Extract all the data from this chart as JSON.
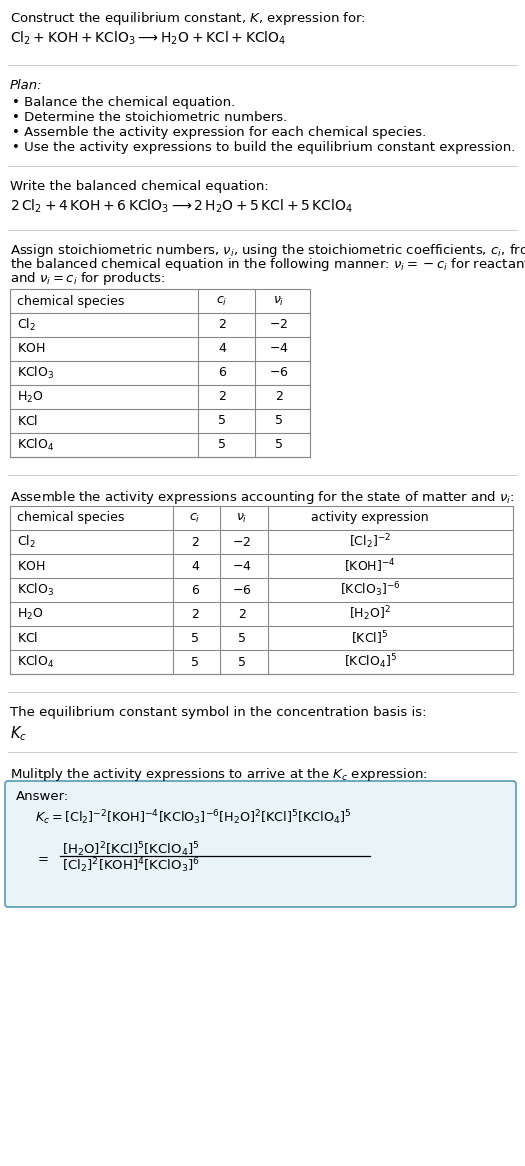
{
  "bg_color": "#ffffff",
  "text_color": "#000000",
  "divider_color": "#cccccc",
  "answer_box_color": "#e8f4f8",
  "answer_box_border": "#5599bb",
  "plan_bullets": [
    "Balance the chemical equation.",
    "Determine the stoichiometric numbers.",
    "Assemble the activity expression for each chemical species.",
    "Use the activity expressions to build the equilibrium constant expression."
  ],
  "table1_rows": [
    [
      "$\\mathrm{Cl_2}$",
      "2",
      "$-2$"
    ],
    [
      "$\\mathrm{KOH}$",
      "4",
      "$-4$"
    ],
    [
      "$\\mathrm{KClO_3}$",
      "6",
      "$-6$"
    ],
    [
      "$\\mathrm{H_2O}$",
      "2",
      "2"
    ],
    [
      "$\\mathrm{KCl}$",
      "5",
      "5"
    ],
    [
      "$\\mathrm{KClO_4}$",
      "5",
      "5"
    ]
  ],
  "table2_rows": [
    [
      "$\\mathrm{Cl_2}$",
      "2",
      "$-2$",
      "$[\\mathrm{Cl_2}]^{-2}$"
    ],
    [
      "$\\mathrm{KOH}$",
      "4",
      "$-4$",
      "$[\\mathrm{KOH}]^{-4}$"
    ],
    [
      "$\\mathrm{KClO_3}$",
      "6",
      "$-6$",
      "$[\\mathrm{KClO_3}]^{-6}$"
    ],
    [
      "$\\mathrm{H_2O}$",
      "2",
      "2",
      "$[\\mathrm{H_2O}]^{2}$"
    ],
    [
      "$\\mathrm{KCl}$",
      "5",
      "5",
      "$[\\mathrm{KCl}]^{5}$"
    ],
    [
      "$\\mathrm{KClO_4}$",
      "5",
      "5",
      "$[\\mathrm{KClO_4}]^{5}$"
    ]
  ]
}
